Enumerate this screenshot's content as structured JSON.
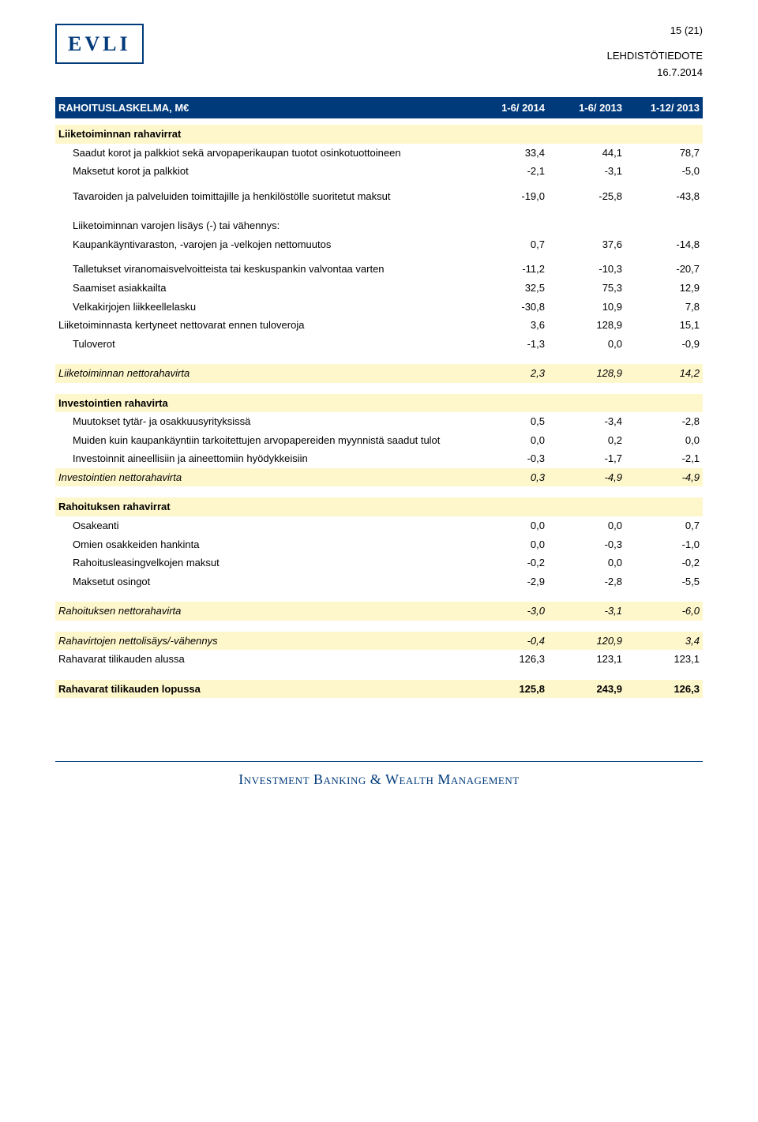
{
  "brand_color": "#003a7a",
  "highlight_color": "#fff7cc",
  "header": {
    "logo": "EVLI",
    "page_number": "15 (21)",
    "press_label": "LEHDISTÖTIEDOTE",
    "date": "16.7.2014"
  },
  "table": {
    "title": "RAHOITUSLASKELMA, M€",
    "col1": "1-6/ 2014",
    "col2": "1-6/ 2013",
    "col3": "1-12/ 2013"
  },
  "sections": {
    "op_flows": "Liiketoiminnan rahavirrat",
    "invest_flow": "Investointien rahavirta",
    "fin_flows": "Rahoituksen rahavirrat"
  },
  "rows": {
    "interest_received": {
      "label": "Saadut korot ja palkkiot sekä arvopaperikaupan tuotot osinkotuottoineen",
      "c1": "33,4",
      "c2": "44,1",
      "c3": "78,7"
    },
    "interest_paid": {
      "label": "Maksetut korot ja palkkiot",
      "c1": "-2,1",
      "c2": "-3,1",
      "c3": "-5,0"
    },
    "suppliers_staff": {
      "label": "Tavaroiden ja palveluiden toimittajille ja henkilöstölle suoritetut maksut",
      "c1": "-19,0",
      "c2": "-25,8",
      "c3": "-43,8"
    },
    "assets_change_hdr": "Liiketoiminnan varojen lisäys (-) tai vähennys:",
    "trading_assets": {
      "label": "Kaupankäyntivaraston, -varojen ja -velkojen nettomuutos",
      "c1": "0,7",
      "c2": "37,6",
      "c3": "-14,8"
    },
    "deposits": {
      "label": "Talletukset viranomaisvelvoitteista tai keskuspankin valvontaa varten",
      "c1": "-11,2",
      "c2": "-10,3",
      "c3": "-20,7"
    },
    "receivables": {
      "label": "Saamiset asiakkailta",
      "c1": "32,5",
      "c2": "75,3",
      "c3": "12,9"
    },
    "bond_issue": {
      "label": "Velkakirjojen liikkeellelasku",
      "c1": "-30,8",
      "c2": "10,9",
      "c3": "7,8"
    },
    "accrued_before_tax": {
      "label": "Liiketoiminnasta kertyneet nettovarat ennen tuloveroja",
      "c1": "3,6",
      "c2": "128,9",
      "c3": "15,1"
    },
    "income_tax": {
      "label": "Tuloverot",
      "c1": "-1,3",
      "c2": "0,0",
      "c3": "-0,9"
    },
    "op_net": {
      "label": "Liiketoiminnan nettorahavirta",
      "c1": "2,3",
      "c2": "128,9",
      "c3": "14,2"
    },
    "subs_changes": {
      "label": "Muutokset tytär- ja osakkuusyrityksissä",
      "c1": "0,5",
      "c2": "-3,4",
      "c3": "-2,8"
    },
    "sale_securities": {
      "label": "Muiden kuin kaupankäyntiin tarkoitettujen arvopapereiden myynnistä saadut tulot",
      "c1": "0,0",
      "c2": "0,2",
      "c3": "0,0"
    },
    "capex": {
      "label": "Investoinnit aineellisiin ja aineettomiin hyödykkeisiin",
      "c1": "-0,3",
      "c2": "-1,7",
      "c3": "-2,1"
    },
    "invest_net": {
      "label": "Investointien nettorahavirta",
      "c1": "0,3",
      "c2": "-4,9",
      "c3": "-4,9"
    },
    "share_issue": {
      "label": "Osakeanti",
      "c1": "0,0",
      "c2": "0,0",
      "c3": "0,7"
    },
    "treasury": {
      "label": "Omien osakkeiden hankinta",
      "c1": "0,0",
      "c2": "-0,3",
      "c3": "-1,0"
    },
    "lease_pay": {
      "label": "Rahoitusleasingvelkojen maksut",
      "c1": "-0,2",
      "c2": "0,0",
      "c3": "-0,2"
    },
    "dividends": {
      "label": "Maksetut osingot",
      "c1": "-2,9",
      "c2": "-2,8",
      "c3": "-5,5"
    },
    "fin_net": {
      "label": "Rahoituksen nettorahavirta",
      "c1": "-3,0",
      "c2": "-3,1",
      "c3": "-6,0"
    },
    "net_change": {
      "label": "Rahavirtojen nettolisäys/-vähennys",
      "c1": "-0,4",
      "c2": "120,9",
      "c3": "3,4"
    },
    "cash_begin": {
      "label": "Rahavarat tilikauden alussa",
      "c1": "126,3",
      "c2": "123,1",
      "c3": "123,1"
    },
    "cash_end": {
      "label": "Rahavarat tilikauden lopussa",
      "c1": "125,8",
      "c2": "243,9",
      "c3": "126,3"
    }
  },
  "footer": "Investment Banking & Wealth Management"
}
